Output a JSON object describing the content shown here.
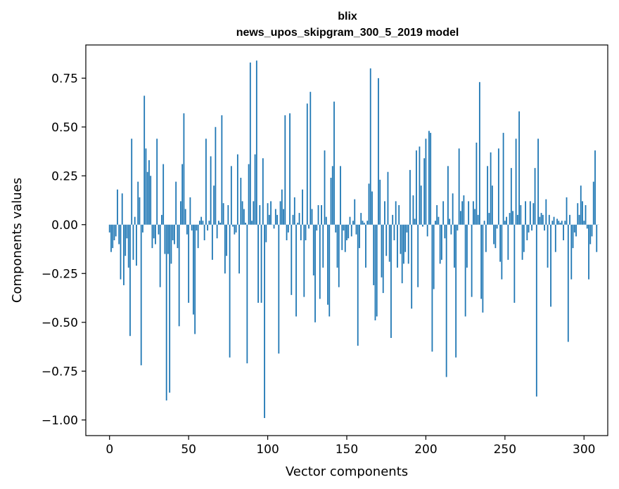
{
  "chart_data": {
    "type": "bar",
    "title": "blix",
    "subtitle": "news_upos_skipgram_300_5_2019 model",
    "xlabel": "Vector components",
    "ylabel": "Components values",
    "xlim": [
      -15,
      315
    ],
    "ylim": [
      -1.08,
      0.92
    ],
    "xticks": [
      0,
      50,
      100,
      150,
      200,
      250,
      300
    ],
    "xtick_labels": [
      "0",
      "50",
      "100",
      "150",
      "200",
      "250",
      "300"
    ],
    "yticks": [
      0.75,
      0.5,
      0.25,
      0.0,
      -0.25,
      -0.5,
      -0.75,
      -1.0
    ],
    "ytick_labels": [
      "0.75",
      "0.50",
      "0.25",
      "0.00",
      "−0.25",
      "−0.50",
      "−0.75",
      "−1.00"
    ],
    "bar_color": "#1f77b4",
    "grid": false,
    "values": [
      -0.04,
      -0.14,
      -0.12,
      -0.08,
      -0.06,
      0.18,
      -0.1,
      -0.28,
      0.16,
      -0.31,
      -0.16,
      -0.07,
      -0.22,
      -0.57,
      0.44,
      -0.18,
      0.04,
      -0.21,
      0.22,
      0.14,
      -0.72,
      -0.04,
      0.66,
      0.39,
      0.27,
      0.33,
      0.25,
      -0.12,
      -0.07,
      -0.1,
      0.44,
      -0.05,
      -0.32,
      0.05,
      0.31,
      -0.15,
      -0.9,
      -0.15,
      -0.86,
      -0.2,
      -0.08,
      -0.1,
      0.22,
      -0.12,
      -0.52,
      0.12,
      0.31,
      0.57,
      0.08,
      -0.05,
      -0.4,
      0.14,
      -0.03,
      -0.46,
      -0.56,
      -0.03,
      -0.12,
      0.02,
      0.04,
      0.02,
      -0.08,
      0.44,
      -0.03,
      0.02,
      0.35,
      -0.18,
      0.2,
      0.5,
      -0.07,
      0.02,
      0.01,
      0.56,
      0.11,
      -0.25,
      -0.16,
      0.1,
      -0.68,
      0.3,
      -0.01,
      -0.05,
      -0.04,
      0.36,
      -0.25,
      0.24,
      0.12,
      0.08,
      0.01,
      -0.71,
      0.31,
      0.83,
      0.02,
      0.12,
      0.36,
      0.84,
      -0.4,
      0.1,
      -0.4,
      0.34,
      -0.99,
      -0.09,
      0.11,
      0.05,
      0.12,
      0.0,
      -0.02,
      0.08,
      0.05,
      -0.66,
      0.12,
      0.18,
      0.08,
      0.56,
      -0.08,
      -0.04,
      0.57,
      -0.36,
      0.05,
      0.14,
      -0.47,
      0.01,
      0.06,
      -0.08,
      0.18,
      -0.37,
      -0.08,
      0.62,
      -0.02,
      0.68,
      0.08,
      -0.26,
      -0.5,
      -0.03,
      0.1,
      -0.38,
      0.1,
      -0.22,
      0.38,
      0.04,
      -0.41,
      -0.47,
      0.24,
      0.3,
      0.63,
      -0.04,
      -0.22,
      -0.32,
      0.3,
      -0.13,
      -0.03,
      -0.14,
      -0.08,
      -0.07,
      0.04,
      -0.06,
      0.02,
      0.13,
      -0.05,
      -0.62,
      -0.12,
      0.06,
      0.02,
      0.01,
      -0.22,
      0.02,
      0.21,
      0.8,
      0.17,
      -0.31,
      -0.49,
      -0.47,
      0.75,
      0.23,
      -0.27,
      -0.35,
      0.12,
      -0.16,
      0.27,
      -0.19,
      -0.58,
      0.05,
      -0.08,
      0.12,
      -0.22,
      0.1,
      -0.15,
      -0.3,
      -0.2,
      -0.14,
      -0.04,
      -0.2,
      0.28,
      -0.43,
      0.15,
      0.03,
      0.38,
      -0.32,
      0.4,
      0.2,
      -0.01,
      0.34,
      0.44,
      -0.06,
      0.48,
      0.47,
      -0.65,
      -0.33,
      0.02,
      0.1,
      0.04,
      -0.2,
      -0.18,
      0.12,
      -0.07,
      -0.78,
      0.3,
      0.03,
      -0.05,
      0.16,
      -0.22,
      -0.68,
      -0.03,
      0.39,
      0.07,
      0.12,
      0.15,
      -0.47,
      -0.22,
      0.12,
      0.0,
      -0.37,
      0.12,
      0.08,
      0.42,
      0.05,
      0.73,
      -0.38,
      -0.45,
      0.02,
      -0.14,
      0.3,
      0.06,
      0.37,
      0.2,
      -0.1,
      -0.12,
      -0.02,
      0.39,
      -0.19,
      -0.28,
      0.47,
      0.02,
      0.04,
      -0.18,
      0.06,
      0.29,
      0.07,
      -0.4,
      0.44,
      0.05,
      0.58,
      0.1,
      -0.18,
      -0.14,
      0.12,
      -0.08,
      -0.04,
      0.12,
      -0.03,
      0.11,
      0.29,
      -0.88,
      0.44,
      0.04,
      0.06,
      0.05,
      -0.03,
      0.13,
      -0.22,
      0.05,
      -0.42,
      0.02,
      0.04,
      -0.14,
      0.03,
      0.02,
      0.01,
      0.02,
      -0.08,
      0.02,
      0.14,
      -0.6,
      0.05,
      -0.28,
      -0.12,
      -0.04,
      -0.06,
      0.11,
      0.05,
      0.2,
      0.12,
      0.02,
      0.1,
      -0.02,
      -0.28,
      -0.1,
      -0.06,
      0.22,
      0.38,
      -0.14,
      0.0
    ]
  }
}
